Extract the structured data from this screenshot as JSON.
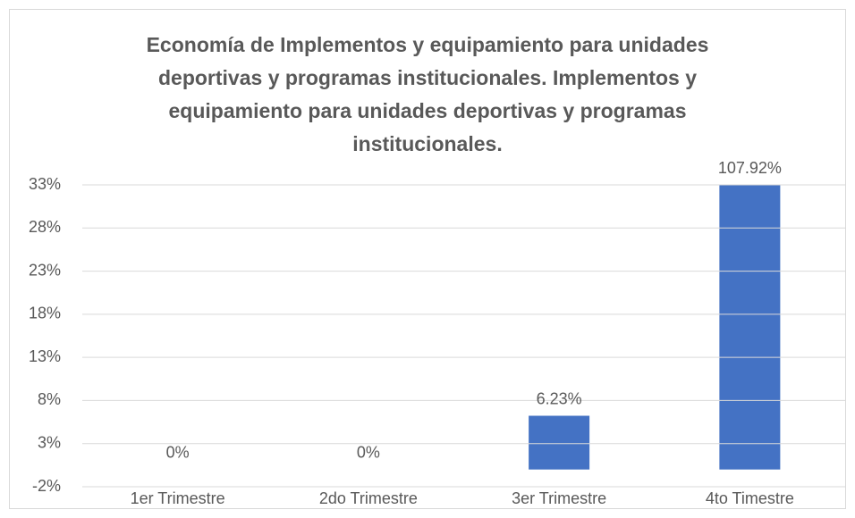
{
  "chart_data": {
    "type": "bar",
    "title": "Economía de Implementos y equipamiento para unidades deportivas y programas institucionales. Implementos y equipamiento para unidades deportivas y programas institucionales.",
    "categories": [
      "1er Trimestre",
      "2do Trimestre",
      "3er Trimestre",
      "4to Timestre"
    ],
    "values": [
      0,
      0,
      6.23,
      107.92
    ],
    "value_labels": [
      "0%",
      "0%",
      "6.23%",
      "107.92%"
    ],
    "color": "#4472c4",
    "ylim": [
      -2,
      33
    ],
    "yticks": [
      {
        "value": -2,
        "label": "-2%"
      },
      {
        "value": 3,
        "label": "3%"
      },
      {
        "value": 8,
        "label": "8%"
      },
      {
        "value": 13,
        "label": "13%"
      },
      {
        "value": 18,
        "label": "18%"
      },
      {
        "value": 23,
        "label": "23%"
      },
      {
        "value": 28,
        "label": "28%"
      },
      {
        "value": 33,
        "label": "33%"
      }
    ],
    "grid": true
  }
}
